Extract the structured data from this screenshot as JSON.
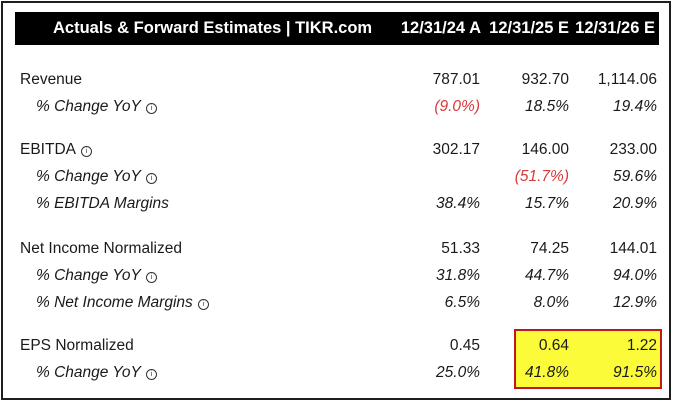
{
  "header": {
    "title": "Actuals & Forward Estimates | TIKR.com",
    "columns": [
      "12/31/24 A",
      "12/31/25 E",
      "12/31/26 E"
    ]
  },
  "rows": [
    {
      "label": "Revenue",
      "values": [
        "787.01",
        "932.70",
        "1,114.06"
      ]
    },
    {
      "label": "% Change YoY",
      "values": [
        "(9.0%)",
        "18.5%",
        "19.4%"
      ]
    },
    {
      "label": "EBITDA",
      "values": [
        "302.17",
        "146.00",
        "233.00"
      ]
    },
    {
      "label": "% Change YoY",
      "values": [
        "",
        "(51.7%)",
        "59.6%"
      ]
    },
    {
      "label": "% EBITDA Margins",
      "values": [
        "38.4%",
        "15.7%",
        "20.9%"
      ]
    },
    {
      "label": "Net Income Normalized",
      "values": [
        "51.33",
        "74.25",
        "144.01"
      ]
    },
    {
      "label": "% Change YoY",
      "values": [
        "31.8%",
        "44.7%",
        "94.0%"
      ]
    },
    {
      "label": "% Net Income Margins",
      "values": [
        "6.5%",
        "8.0%",
        "12.9%"
      ]
    },
    {
      "label": "EPS Normalized",
      "values": [
        "0.45",
        "0.64",
        "1.22"
      ]
    },
    {
      "label": "% Change YoY",
      "values": [
        "25.0%",
        "41.8%",
        "91.5%"
      ]
    }
  ],
  "colors": {
    "negative": "#d93a3a",
    "highlight_fill": "#fbfb3a",
    "highlight_border": "#c0171d",
    "header_bg": "#000000"
  },
  "icons": [
    "info-icon"
  ]
}
